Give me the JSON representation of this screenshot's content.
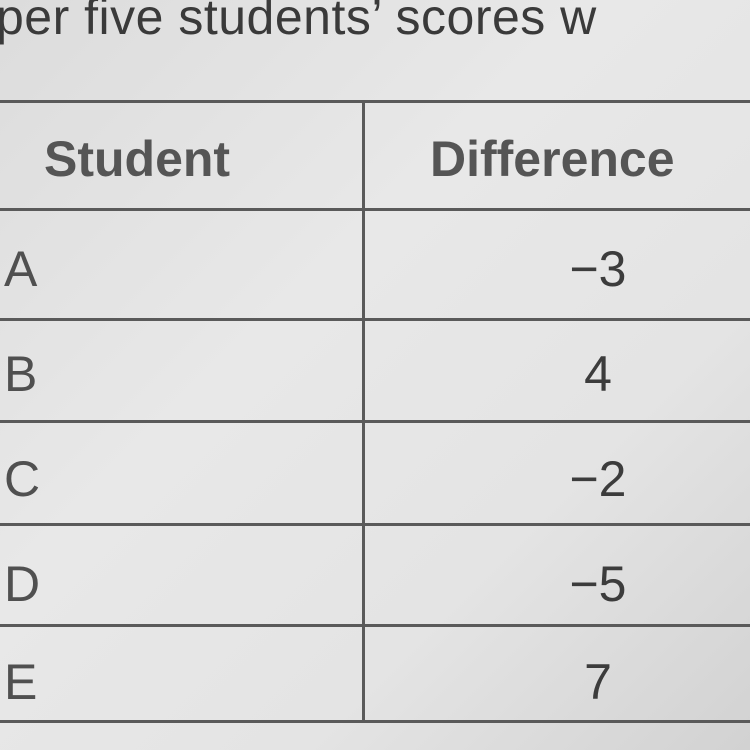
{
  "intro_text": "per five students’ scores w",
  "table": {
    "headers": [
      "Student",
      "Difference"
    ],
    "rows": [
      {
        "student": "A",
        "difference": "−3"
      },
      {
        "student": "B",
        "difference": "4"
      },
      {
        "student": "C",
        "difference": "−2"
      },
      {
        "student": "D",
        "difference": "−5"
      },
      {
        "student": "E",
        "difference": "7"
      }
    ]
  }
}
